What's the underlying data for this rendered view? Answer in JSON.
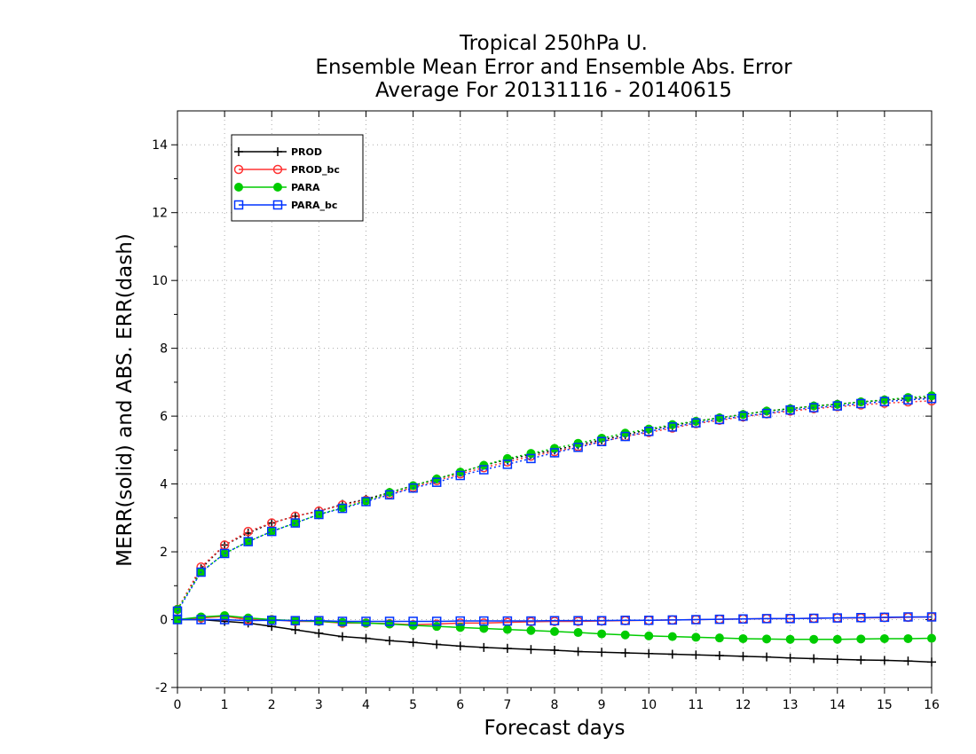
{
  "chart_data": {
    "type": "line",
    "title_lines": [
      "Tropical 250hPa U.",
      "Ensemble Mean Error and Ensemble Abs. Error",
      "Average For 20131116 - 20140615"
    ],
    "xlabel": "Forecast days",
    "ylabel": "MERR(solid) and ABS. ERR(dash)",
    "xlim": [
      0,
      16
    ],
    "ylim": [
      -2,
      15
    ],
    "xticks": [
      0,
      1,
      2,
      3,
      4,
      5,
      6,
      7,
      8,
      9,
      10,
      11,
      12,
      13,
      14,
      15,
      16
    ],
    "yticks": [
      -2,
      0,
      2,
      4,
      6,
      8,
      10,
      12,
      14
    ],
    "grid": true,
    "legend_position": "top-left",
    "x": [
      0,
      0.5,
      1,
      1.5,
      2,
      2.5,
      3,
      3.5,
      4,
      4.5,
      5,
      5.5,
      6,
      6.5,
      7,
      7.5,
      8,
      8.5,
      9,
      9.5,
      10,
      10.5,
      11,
      11.5,
      12,
      12.5,
      13,
      13.5,
      14,
      14.5,
      15,
      15.5,
      16
    ],
    "series": [
      {
        "name": "PROD",
        "color": "#000000",
        "marker": "plus",
        "merr": [
          0.0,
          0.0,
          -0.05,
          -0.1,
          -0.2,
          -0.3,
          -0.4,
          -0.5,
          -0.55,
          -0.62,
          -0.67,
          -0.73,
          -0.78,
          -0.82,
          -0.85,
          -0.88,
          -0.9,
          -0.94,
          -0.96,
          -0.98,
          -1.0,
          -1.02,
          -1.04,
          -1.06,
          -1.08,
          -1.1,
          -1.13,
          -1.15,
          -1.17,
          -1.19,
          -1.2,
          -1.22,
          -1.25
        ],
        "abs_err": [
          0.3,
          1.5,
          2.2,
          2.55,
          2.85,
          3.05,
          3.2,
          3.4,
          3.55,
          3.75,
          3.95,
          4.15,
          4.35,
          4.55,
          4.72,
          4.87,
          5.0,
          5.15,
          5.3,
          5.45,
          5.6,
          5.72,
          5.85,
          5.95,
          6.05,
          6.15,
          6.22,
          6.3,
          6.35,
          6.42,
          6.47,
          6.52,
          6.55
        ]
      },
      {
        "name": "PROD_bc",
        "color": "#ff3333",
        "marker": "circle-open",
        "merr": [
          0.0,
          0.05,
          0.1,
          0.0,
          0.0,
          -0.05,
          -0.05,
          -0.1,
          -0.1,
          -0.12,
          -0.15,
          -0.13,
          -0.1,
          -0.1,
          -0.08,
          -0.06,
          -0.05,
          -0.05,
          -0.04,
          -0.03,
          -0.02,
          -0.01,
          0.0,
          0.01,
          0.02,
          0.03,
          0.03,
          0.04,
          0.05,
          0.05,
          0.06,
          0.07,
          0.08
        ],
        "abs_err": [
          0.3,
          1.55,
          2.2,
          2.6,
          2.85,
          3.05,
          3.2,
          3.38,
          3.52,
          3.7,
          3.9,
          4.1,
          4.3,
          4.48,
          4.65,
          4.82,
          4.95,
          5.1,
          5.25,
          5.4,
          5.52,
          5.65,
          5.78,
          5.88,
          5.98,
          6.07,
          6.15,
          6.22,
          6.28,
          6.33,
          6.38,
          6.42,
          6.45
        ]
      },
      {
        "name": "PARA",
        "color": "#00cc00",
        "marker": "circle-filled",
        "merr": [
          0.0,
          0.08,
          0.12,
          0.05,
          0.0,
          -0.03,
          -0.05,
          -0.08,
          -0.1,
          -0.13,
          -0.17,
          -0.2,
          -0.23,
          -0.26,
          -0.29,
          -0.32,
          -0.35,
          -0.38,
          -0.42,
          -0.45,
          -0.48,
          -0.5,
          -0.52,
          -0.54,
          -0.56,
          -0.57,
          -0.58,
          -0.58,
          -0.58,
          -0.57,
          -0.56,
          -0.56,
          -0.55
        ],
        "abs_err": [
          0.3,
          1.4,
          1.95,
          2.3,
          2.6,
          2.85,
          3.1,
          3.3,
          3.5,
          3.75,
          3.95,
          4.15,
          4.35,
          4.55,
          4.75,
          4.9,
          5.05,
          5.2,
          5.35,
          5.5,
          5.62,
          5.75,
          5.85,
          5.95,
          6.05,
          6.15,
          6.22,
          6.3,
          6.35,
          6.42,
          6.48,
          6.55,
          6.6
        ]
      },
      {
        "name": "PARA_bc",
        "color": "#0033ff",
        "marker": "square-open",
        "merr": [
          0.0,
          0.0,
          0.0,
          -0.03,
          -0.02,
          -0.03,
          -0.03,
          -0.05,
          -0.05,
          -0.05,
          -0.05,
          -0.05,
          -0.04,
          -0.04,
          -0.04,
          -0.04,
          -0.03,
          -0.03,
          -0.03,
          -0.02,
          -0.02,
          -0.01,
          0.0,
          0.01,
          0.02,
          0.03,
          0.03,
          0.04,
          0.05,
          0.06,
          0.07,
          0.08,
          0.08
        ],
        "abs_err": [
          0.25,
          1.4,
          1.95,
          2.3,
          2.6,
          2.85,
          3.1,
          3.28,
          3.48,
          3.68,
          3.88,
          4.05,
          4.25,
          4.42,
          4.58,
          4.75,
          4.92,
          5.08,
          5.25,
          5.4,
          5.55,
          5.68,
          5.8,
          5.9,
          6.0,
          6.08,
          6.18,
          6.25,
          6.3,
          6.37,
          6.43,
          6.48,
          6.52
        ]
      }
    ]
  }
}
